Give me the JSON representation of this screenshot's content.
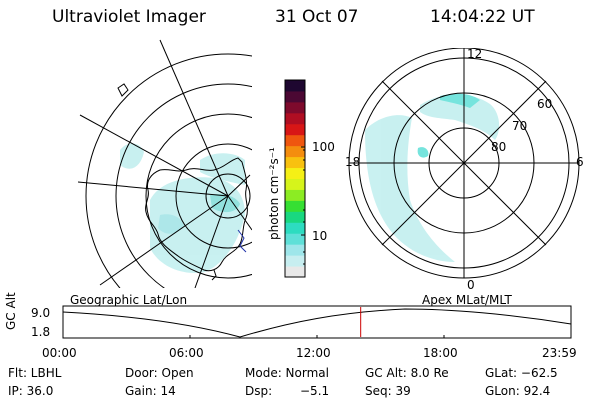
{
  "header": {
    "instrument": "Ultraviolet Imager",
    "date": "31 Oct 07",
    "time": "14:04:22 UT"
  },
  "geo_panel": {
    "label": "Geographic Lat/Lon"
  },
  "colorbar": {
    "unit_label": "photon cm⁻²s⁻¹",
    "tick_high": "100",
    "tick_low": "10",
    "colors": [
      "#e8e8e8",
      "#c7eef0",
      "#9ee6ea",
      "#5fe0d8",
      "#2ddcc0",
      "#19d880",
      "#36df33",
      "#8cec23",
      "#d6f41b",
      "#f5f016",
      "#f8c10f",
      "#f48d0e",
      "#ef560f",
      "#d81616",
      "#b00e22",
      "#7e0a2c",
      "#4b0833",
      "#1e0730"
    ]
  },
  "apex_panel": {
    "label": "Apex  MLat/MLT",
    "mlt_12": "12",
    "mlt_18": "18",
    "mlt_6": "6",
    "mlt_0": "0",
    "lat_60": "60",
    "lat_70": "70",
    "lat_80": "80"
  },
  "altitude_plot": {
    "ylabel": "GC Alt",
    "ytick": "9.0",
    "ytick2": "1.8",
    "xticks": [
      "00:00",
      "06:00",
      "12:00",
      "18:00",
      "23:59"
    ],
    "marker_fraction": 0.586,
    "marker_color": "#cc0000"
  },
  "info": {
    "filter": "Flt: LBHL",
    "door": "Door: Open",
    "mode": "Mode: Normal",
    "gc_alt": "GC Alt: 8.0 Re",
    "glat": "GLat: −62.5",
    "ip": "IP: 36.0",
    "gain": "Gain: 14",
    "dsp_label": "Dsp:",
    "dsp_value": "−5.1",
    "seq": "Seq: 39",
    "glon": "GLon:  92.4"
  }
}
